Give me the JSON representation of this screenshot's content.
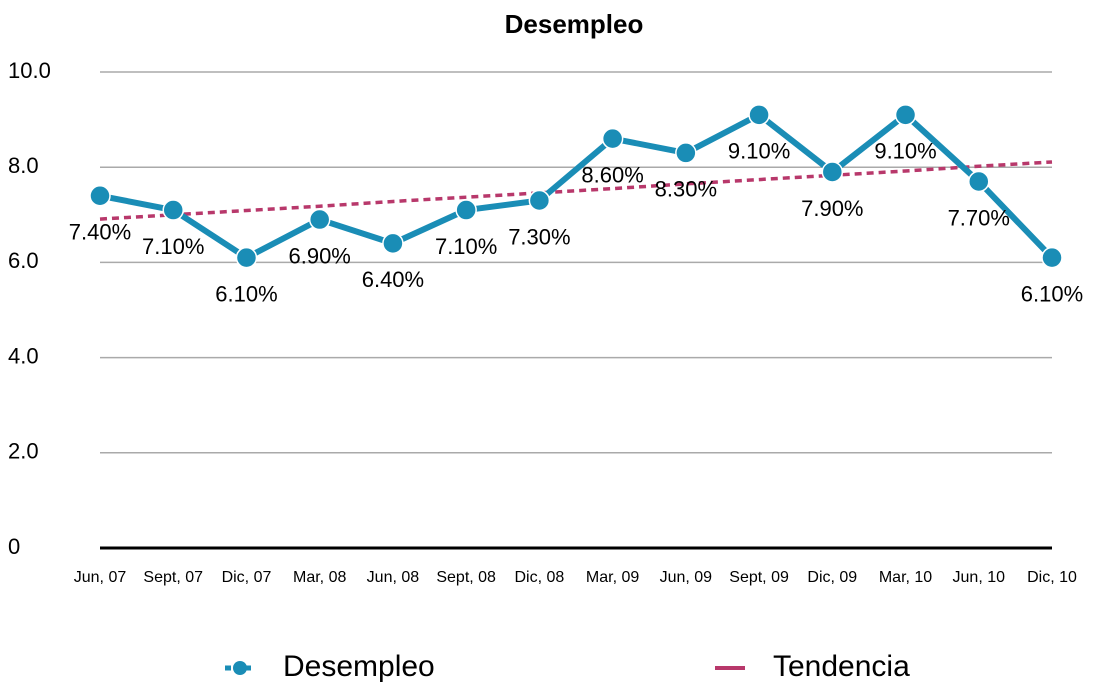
{
  "chart_data": {
    "type": "line",
    "title": "Desempleo",
    "categories": [
      "Jun, 07",
      "Sept, 07",
      "Dic, 07",
      "Mar, 08",
      "Jun, 08",
      "Sept, 08",
      "Dic, 08",
      "Mar, 09",
      "Jun, 09",
      "Sept, 09",
      "Dic, 09",
      "Mar, 10",
      "Jun, 10",
      "Dic, 10"
    ],
    "series": [
      {
        "name": "Desempleo",
        "color": "#1a8db6",
        "markers": true,
        "dashed": false,
        "values": [
          7.4,
          7.1,
          6.1,
          6.9,
          6.4,
          7.1,
          7.3,
          8.6,
          8.3,
          9.1,
          7.9,
          9.1,
          7.7,
          6.1
        ],
        "value_labels": [
          "7.40%",
          "7.10%",
          "6.10%",
          "6.90%",
          "6.40%",
          "7.10%",
          "7.30%",
          "8.60%",
          "8.30%",
          "9.10%",
          "7.90%",
          "9.10%",
          "7.70%",
          "6.10%"
        ]
      },
      {
        "name": "Tendencia",
        "color": "#b8386b",
        "markers": false,
        "dashed": true,
        "values": [
          6.91,
          7.0,
          7.09,
          7.18,
          7.28,
          7.37,
          7.46,
          7.55,
          7.65,
          7.74,
          7.83,
          7.92,
          8.02,
          8.11
        ]
      }
    ],
    "ylim": [
      0,
      10
    ],
    "yticks": [
      0,
      {
        "value": 2,
        "label": "2.0"
      },
      {
        "value": 4,
        "label": "4.0"
      },
      {
        "value": 6,
        "label": "6.0"
      },
      {
        "value": 8,
        "label": "8.0"
      },
      {
        "value": 10,
        "label": "10.0"
      }
    ],
    "grid": true,
    "legend": "bottom"
  }
}
